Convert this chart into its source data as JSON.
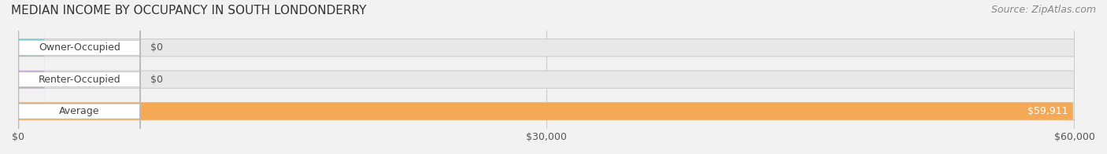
{
  "title": "MEDIAN INCOME BY OCCUPANCY IN SOUTH LONDONDERRY",
  "source": "Source: ZipAtlas.com",
  "categories": [
    "Owner-Occupied",
    "Renter-Occupied",
    "Average"
  ],
  "values": [
    0,
    0,
    59911
  ],
  "bar_colors": [
    "#7ecfd4",
    "#c4a8d4",
    "#f5a954"
  ],
  "label_colors": [
    "#555555",
    "#555555",
    "#ffffff"
  ],
  "value_labels": [
    "$0",
    "$0",
    "$59,911"
  ],
  "xlim": [
    0,
    60000
  ],
  "xticks": [
    0,
    30000,
    60000
  ],
  "xticklabels": [
    "$0",
    "$30,000",
    "$60,000"
  ],
  "bar_height": 0.55,
  "background_color": "#f2f2f2",
  "bar_bg_color": "#e8e8e8",
  "title_fontsize": 11,
  "source_fontsize": 9,
  "tick_fontsize": 9,
  "label_fontsize": 9
}
